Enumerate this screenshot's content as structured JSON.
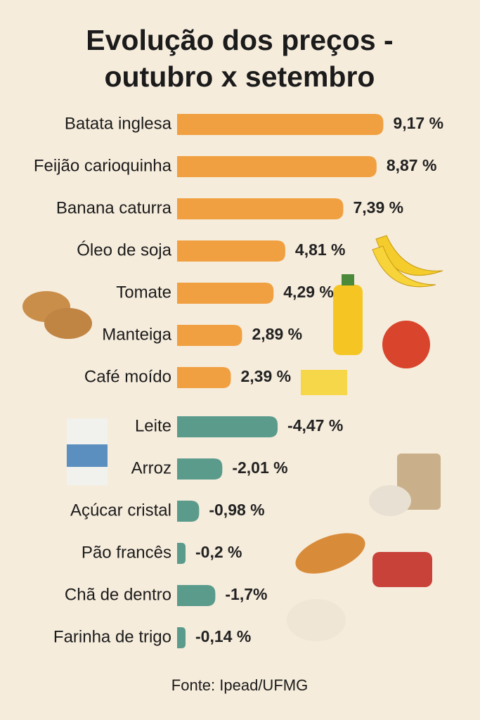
{
  "chart_data": {
    "type": "bar",
    "orientation": "horizontal",
    "title": [
      "Evolução dos preços -",
      "outubro x setembro"
    ],
    "categories": [
      "Batata inglesa",
      "Feijão carioquinha",
      "Banana caturra",
      "Óleo de soja",
      "Tomate",
      "Manteiga",
      "Café moído",
      "Leite",
      "Arroz",
      "Açúcar cristal",
      "Pão francês",
      "Chã de dentro",
      "Farinha de trigo"
    ],
    "values": [
      9.17,
      8.87,
      7.39,
      4.81,
      4.29,
      2.89,
      2.39,
      -4.47,
      -2.01,
      -0.98,
      -0.2,
      -1.7,
      -0.14
    ],
    "value_labels": [
      "9,17 %",
      "8,87 %",
      "7,39 %",
      "4,81 %",
      "4,29 %",
      "2,89 %",
      "2,39 %",
      "-4,47 %",
      "-2,01 %",
      "-0,98 %",
      "-0,2 %",
      "-1,7%",
      "-0,14 %"
    ],
    "positive_color": "#f0a040",
    "negative_color": "#5b9b8c",
    "source": "Fonte: Ipead/UFMG"
  }
}
